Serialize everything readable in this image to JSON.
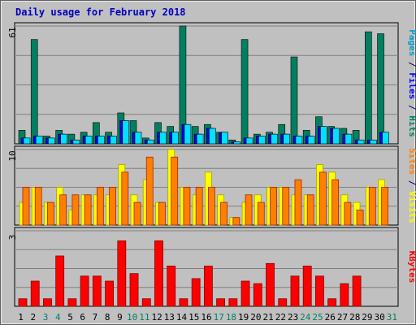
{
  "chart_data": {
    "type": "bar",
    "title": "Daily usage for February 2018",
    "categories": [
      "1",
      "2",
      "3",
      "4",
      "5",
      "6",
      "7",
      "8",
      "9",
      "10",
      "11",
      "12",
      "13",
      "14",
      "15",
      "16",
      "17",
      "18",
      "19",
      "20",
      "21",
      "22",
      "23",
      "24",
      "25",
      "26",
      "27",
      "28",
      "29",
      "30",
      "31"
    ],
    "weekend_days": [
      "3",
      "4",
      "10",
      "11",
      "17",
      "18",
      "24",
      "25",
      "31"
    ],
    "panels": [
      {
        "id": "pages_files_hits",
        "ymax": 61,
        "ymax_label": "61",
        "ylabel_parts": [
          {
            "text": "Pages",
            "color": "#00a0cc"
          },
          {
            "text": " / ",
            "color": "#000080"
          },
          {
            "text": "Files",
            "color": "#0000ff"
          },
          {
            "text": " / ",
            "color": "#000080"
          },
          {
            "text": "Hits",
            "color": "#008060"
          }
        ],
        "series": [
          {
            "name": "Hits",
            "color": "#008060",
            "values": [
              7,
              54,
              4,
              7,
              5,
              6,
              11,
              6,
              16,
              12,
              3,
              11,
              9,
              61,
              9,
              10,
              6,
              2,
              54,
              5,
              6,
              10,
              45,
              7,
              14,
              9,
              8,
              7,
              58,
              57,
              0
            ]
          },
          {
            "name": "Files",
            "color": "#0000ff",
            "values": [
              3,
              4,
              3,
              5,
              2,
              4,
              4,
              4,
              12,
              6,
              2,
              6,
              6,
              10,
              5,
              8,
              6,
              1,
              3,
              4,
              5,
              5,
              4,
              4,
              9,
              8,
              5,
              2,
              2,
              6,
              0
            ]
          },
          {
            "name": "Pages",
            "color": "#00e0ff",
            "values": [
              3,
              4,
              3,
              5,
              2,
              4,
              4,
              4,
              12,
              6,
              2,
              6,
              6,
              10,
              5,
              8,
              6,
              1,
              3,
              4,
              5,
              5,
              4,
              4,
              9,
              8,
              5,
              2,
              2,
              6,
              0
            ]
          }
        ]
      },
      {
        "id": "visits_sites",
        "ymax": 10,
        "ymax_label": "10",
        "ylabel_parts": [
          {
            "text": "Sites",
            "color": "#ff8000"
          },
          {
            "text": " / ",
            "color": "#000080"
          },
          {
            "text": "Visits",
            "color": "#ffff00"
          }
        ],
        "series": [
          {
            "name": "Visits",
            "color": "#ffff00",
            "values": [
              3,
              5,
              3,
              5,
              2,
              4,
              4,
              4,
              8,
              4,
              6,
              3,
              10,
              5,
              4,
              7,
              4,
              1,
              3,
              4,
              5,
              5,
              4,
              4,
              8,
              7,
              4,
              3,
              5,
              6,
              0
            ]
          },
          {
            "name": "Sites",
            "color": "#ff8000",
            "values": [
              5,
              5,
              3,
              4,
              4,
              4,
              5,
              5,
              7,
              3,
              9,
              3,
              9,
              5,
              5,
              5,
              3,
              1,
              4,
              3,
              5,
              5,
              6,
              4,
              7,
              6,
              3,
              2,
              5,
              5,
              0
            ]
          }
        ]
      },
      {
        "id": "kbytes",
        "ymax": 3,
        "ymax_label": "3",
        "ylabel_parts": [
          {
            "text": "KBytes",
            "color": "#ff0000"
          }
        ],
        "series": [
          {
            "name": "KBytes",
            "color": "#ff0000",
            "values": [
              0.3,
              1.0,
              0.3,
              2.0,
              0.3,
              1.2,
              1.2,
              1.0,
              2.6,
              1.3,
              0.3,
              2.6,
              1.6,
              0.3,
              1.1,
              1.6,
              0.3,
              0.3,
              1.0,
              0.9,
              1.7,
              0.3,
              1.2,
              1.6,
              1.2,
              0.3,
              0.9,
              1.2,
              0,
              0,
              0
            ]
          }
        ]
      }
    ]
  }
}
